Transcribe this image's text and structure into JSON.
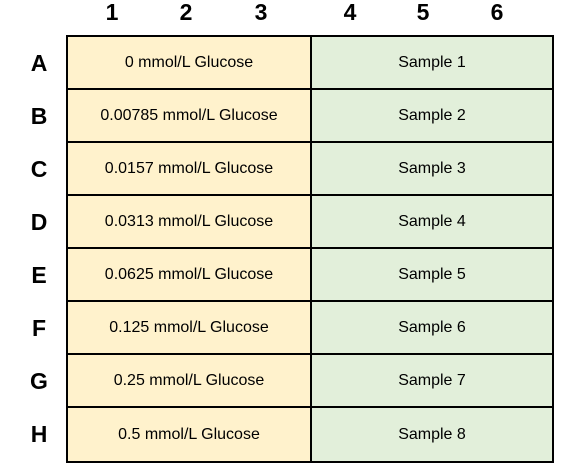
{
  "columns": [
    "1",
    "2",
    "3",
    "4",
    "5",
    "6"
  ],
  "rows": [
    {
      "label": "A",
      "standard": "0 mmol/L Glucose",
      "sample": "Sample 1"
    },
    {
      "label": "B",
      "standard": "0.00785 mmol/L Glucose",
      "sample": "Sample 2"
    },
    {
      "label": "C",
      "standard": "0.0157 mmol/L Glucose",
      "sample": "Sample 3"
    },
    {
      "label": "D",
      "standard": "0.0313 mmol/L Glucose",
      "sample": "Sample 4"
    },
    {
      "label": "E",
      "standard": "0.0625 mmol/L Glucose",
      "sample": "Sample 5"
    },
    {
      "label": "F",
      "standard": "0.125 mmol/L Glucose",
      "sample": "Sample 6"
    },
    {
      "label": "G",
      "standard": "0.25 mmol/L Glucose",
      "sample": "Sample 7"
    },
    {
      "label": "H",
      "standard": "0.5 mmol/L Glucose",
      "sample": "Sample 8"
    }
  ],
  "colors": {
    "standard_fill": "#FFF2CC",
    "sample_fill": "#E2EFDA",
    "border": "#000000"
  }
}
